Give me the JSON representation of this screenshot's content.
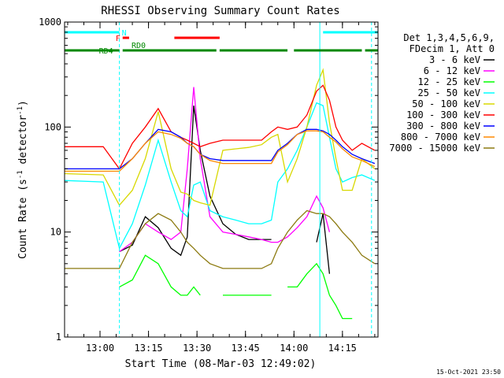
{
  "chart_data": {
    "type": "line",
    "title": "RHESSI Observing Summary Count Rates",
    "xlabel": "Start Time (08-Mar-03 12:49:02)",
    "ylabel": "Count Rate (s⁻¹ detector⁻¹)",
    "ylabel_main": "Count Rate (s",
    "ylabel_sup1": "-1",
    "ylabel_mid": " detector",
    "ylabel_sup2": "-1",
    "ylabel_end": ")",
    "yscale": "log",
    "xlim": [
      "12:49:02",
      "14:26:00"
    ],
    "ylim": [
      1,
      1000
    ],
    "x_ticks": [
      "13:00",
      "13:15",
      "13:30",
      "13:45",
      "14:00",
      "14:15"
    ],
    "y_ticks": [
      {
        "value": 1,
        "label": "1"
      },
      {
        "value": 10,
        "label": "10"
      },
      {
        "value": 100,
        "label": "100"
      },
      {
        "value": 1000,
        "label": "1000"
      }
    ],
    "legend_header": [
      "Det 1,3,4,5,6,9,",
      "FDecim 1, Att 0"
    ],
    "series": [
      {
        "name": "3 - 6 keV",
        "color": "#000000",
        "x": [
          "12:49",
          "13:01",
          "13:06",
          "13:10",
          "13:14",
          "13:18",
          "13:22",
          "13:25",
          "13:27",
          "13:29",
          "13:31",
          "13:34",
          "13:38",
          "13:42",
          "13:46",
          "13:50",
          "13:53",
          "13:55",
          "13:58",
          "14:01",
          "14:04",
          "14:07",
          "14:09",
          "14:11",
          "14:13",
          "14:15",
          "14:18",
          "14:21",
          "14:25"
        ],
        "values": [
          null,
          null,
          6.5,
          7.5,
          14,
          11,
          7,
          6,
          9,
          160,
          60,
          22,
          12,
          9.5,
          8.5,
          8.5,
          8.5,
          null,
          null,
          null,
          null,
          8,
          15,
          4,
          null,
          null,
          null,
          null,
          null
        ]
      },
      {
        "name": "6 - 12 keV",
        "color": "#ff00ff",
        "x": [
          "12:49",
          "13:01",
          "13:06",
          "13:10",
          "13:14",
          "13:18",
          "13:22",
          "13:25",
          "13:27",
          "13:29",
          "13:31",
          "13:34",
          "13:38",
          "13:42",
          "13:46",
          "13:50",
          "13:53",
          "13:55",
          "13:58",
          "14:01",
          "14:04",
          "14:07",
          "14:09",
          "14:11",
          "14:13",
          "14:15",
          "14:18",
          "14:21",
          "14:25"
        ],
        "values": [
          null,
          null,
          6.5,
          8,
          12,
          10,
          8.5,
          10,
          40,
          240,
          50,
          14,
          10,
          9.5,
          9,
          8.5,
          8,
          8,
          9,
          11,
          14,
          22,
          17,
          10,
          null,
          null,
          null,
          null,
          null
        ]
      },
      {
        "name": "12 - 25 keV",
        "color": "#00ff00",
        "x": [
          "12:49",
          "13:01",
          "13:06",
          "13:10",
          "13:14",
          "13:18",
          "13:22",
          "13:25",
          "13:27",
          "13:29",
          "13:31",
          "13:34",
          "13:38",
          "13:42",
          "13:46",
          "13:50",
          "13:53",
          "13:55",
          "13:58",
          "14:01",
          "14:04",
          "14:07",
          "14:09",
          "14:11",
          "14:13",
          "14:15",
          "14:18",
          "14:21",
          "14:25"
        ],
        "values": [
          null,
          null,
          3,
          3.5,
          6,
          5,
          3,
          2.5,
          2.5,
          3,
          2.5,
          null,
          2.5,
          2.5,
          2.5,
          2.5,
          2.5,
          null,
          3,
          3,
          4,
          5,
          4,
          2.5,
          2,
          1.5,
          1.5,
          null,
          null
        ]
      },
      {
        "name": "25 - 50 keV",
        "color": "#00ffff",
        "x": [
          "12:49",
          "13:01",
          "13:06",
          "13:10",
          "13:14",
          "13:18",
          "13:22",
          "13:25",
          "13:27",
          "13:29",
          "13:31",
          "13:34",
          "13:38",
          "13:42",
          "13:46",
          "13:50",
          "13:53",
          "13:55",
          "13:58",
          "14:01",
          "14:04",
          "14:07",
          "14:09",
          "14:11",
          "14:13",
          "14:15",
          "14:18",
          "14:21",
          "14:25"
        ],
        "values": [
          31,
          30,
          7,
          12,
          28,
          75,
          30,
          16,
          14,
          28,
          30,
          16,
          14,
          13,
          12,
          12,
          13,
          30,
          40,
          60,
          100,
          170,
          160,
          80,
          40,
          30,
          33,
          35,
          31
        ]
      },
      {
        "name": "50 - 100 keV",
        "color": "#d8d800",
        "x": [
          "12:49",
          "13:01",
          "13:06",
          "13:10",
          "13:14",
          "13:18",
          "13:22",
          "13:25",
          "13:27",
          "13:29",
          "13:31",
          "13:34",
          "13:38",
          "13:42",
          "13:46",
          "13:50",
          "13:53",
          "13:55",
          "13:58",
          "14:01",
          "14:04",
          "14:07",
          "14:09",
          "14:11",
          "14:13",
          "14:15",
          "14:18",
          "14:21",
          "14:25"
        ],
        "values": [
          36,
          35,
          18,
          25,
          50,
          140,
          40,
          24,
          23,
          20,
          19,
          18,
          60,
          62,
          64,
          68,
          80,
          85,
          30,
          50,
          100,
          250,
          350,
          110,
          50,
          25,
          25,
          50,
          40
        ]
      },
      {
        "name": "100 - 300 keV",
        "color": "#ff0000",
        "x": [
          "12:49",
          "13:01",
          "13:06",
          "13:10",
          "13:14",
          "13:18",
          "13:22",
          "13:25",
          "13:27",
          "13:29",
          "13:31",
          "13:34",
          "13:38",
          "13:42",
          "13:46",
          "13:50",
          "13:53",
          "13:55",
          "13:58",
          "14:01",
          "14:04",
          "14:07",
          "14:09",
          "14:11",
          "14:13",
          "14:15",
          "14:18",
          "14:21",
          "14:25"
        ],
        "values": [
          65,
          65,
          40,
          70,
          100,
          150,
          90,
          80,
          75,
          70,
          65,
          70,
          75,
          75,
          75,
          75,
          90,
          100,
          95,
          100,
          130,
          220,
          250,
          180,
          100,
          75,
          60,
          70,
          60
        ]
      },
      {
        "name": "300 - 800 keV",
        "color": "#0000ff",
        "x": [
          "12:49",
          "13:01",
          "13:06",
          "13:10",
          "13:14",
          "13:18",
          "13:22",
          "13:25",
          "13:27",
          "13:29",
          "13:31",
          "13:34",
          "13:38",
          "13:42",
          "13:46",
          "13:50",
          "13:53",
          "13:55",
          "13:58",
          "14:01",
          "14:04",
          "14:07",
          "14:09",
          "14:11",
          "14:13",
          "14:15",
          "14:18",
          "14:21",
          "14:25"
        ],
        "values": [
          40,
          40,
          40,
          50,
          70,
          95,
          90,
          80,
          70,
          65,
          55,
          50,
          48,
          48,
          48,
          48,
          48,
          60,
          70,
          85,
          95,
          95,
          92,
          85,
          75,
          65,
          55,
          50,
          45
        ]
      },
      {
        "name": "800 - 7000 keV",
        "color": "#ff8800",
        "x": [
          "12:49",
          "13:01",
          "13:06",
          "13:10",
          "13:14",
          "13:18",
          "13:22",
          "13:25",
          "13:27",
          "13:29",
          "13:31",
          "13:34",
          "13:38",
          "13:42",
          "13:46",
          "13:50",
          "13:53",
          "13:55",
          "13:58",
          "14:01",
          "14:04",
          "14:07",
          "14:09",
          "14:11",
          "14:13",
          "14:15",
          "14:18",
          "14:21",
          "14:25"
        ],
        "values": [
          38,
          38,
          38,
          50,
          70,
          90,
          85,
          78,
          70,
          65,
          55,
          48,
          45,
          45,
          45,
          45,
          45,
          58,
          68,
          85,
          92,
          92,
          90,
          80,
          72,
          62,
          52,
          48,
          42
        ]
      },
      {
        "name": "7000 - 15000 keV",
        "color": "#8c7a10",
        "x": [
          "12:49",
          "13:01",
          "13:06",
          "13:10",
          "13:14",
          "13:18",
          "13:22",
          "13:25",
          "13:27",
          "13:29",
          "13:31",
          "13:34",
          "13:38",
          "13:42",
          "13:46",
          "13:50",
          "13:53",
          "13:55",
          "13:58",
          "14:01",
          "14:04",
          "14:07",
          "14:09",
          "14:11",
          "14:13",
          "14:15",
          "14:18",
          "14:21",
          "14:25"
        ],
        "values": [
          4.5,
          4.5,
          4.5,
          8,
          12,
          15,
          13,
          10,
          8,
          7,
          6,
          5,
          4.5,
          4.5,
          4.5,
          4.5,
          5,
          7,
          10,
          13,
          16,
          15,
          15,
          14,
          12,
          10,
          8,
          6,
          5
        ]
      }
    ],
    "flags": [
      {
        "label": "N",
        "color": "#00ffff",
        "segments": [
          [
            "12:49",
            "13:06"
          ],
          [
            "14:09",
            "14:26"
          ]
        ]
      },
      {
        "label": "F",
        "color": "#ff0000",
        "segments": [
          [
            "13:07",
            "13:09"
          ],
          [
            "13:23",
            "13:37"
          ]
        ]
      },
      {
        "label": "RD0",
        "color": "#008800",
        "segments": [
          [
            "13:09",
            "13:09"
          ]
        ]
      },
      {
        "label": "RD4",
        "color": "#008800",
        "segments": [
          [
            "12:49",
            "13:06"
          ],
          [
            "13:07",
            "13:36"
          ],
          [
            "13:37",
            "13:58"
          ],
          [
            "14:00",
            "14:21"
          ],
          [
            "14:22",
            "14:26"
          ]
        ]
      }
    ],
    "vertical_lines": [
      {
        "x": "13:06",
        "color": "#00ffff",
        "style": "dashed"
      },
      {
        "x": "14:08",
        "color": "#00ffff",
        "style": "solid"
      },
      {
        "x": "14:24",
        "color": "#00ffff",
        "style": "dashed"
      }
    ],
    "grid": false,
    "legend_placement": "right",
    "timestamp": "15-Oct-2021 23:50"
  }
}
